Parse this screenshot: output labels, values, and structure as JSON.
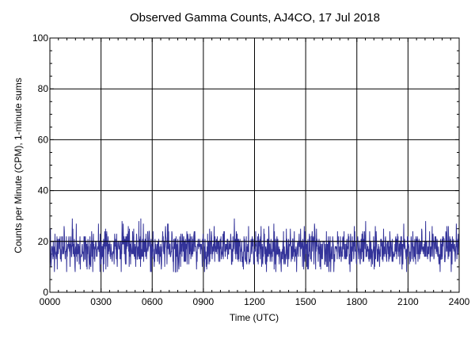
{
  "colors": {
    "background": "#ffffff",
    "grid": "#000000",
    "series": "#333399",
    "axes": "#000000"
  },
  "chart_data": {
    "type": "line",
    "title": "Observed Gamma Counts, AJ4CO, 17 Jul 2018",
    "xlabel": "Time (UTC)",
    "ylabel": "Counts per Minute (CPM), 1-minute sums",
    "xlim": [
      0,
      1440
    ],
    "ylim": [
      0,
      100
    ],
    "x_unit": "minutes after 0000 UTC",
    "x_tick_values": [
      0,
      180,
      360,
      540,
      720,
      900,
      1080,
      1260,
      1440
    ],
    "x_tick_labels": [
      "0000",
      "0300",
      "0600",
      "0900",
      "1200",
      "1500",
      "1800",
      "2100",
      "2400"
    ],
    "y_tick_values": [
      0,
      20,
      40,
      60,
      80,
      100
    ],
    "y_tick_labels": [
      "0",
      "20",
      "40",
      "60",
      "80",
      "100"
    ],
    "grid": true,
    "reference_line_y": 20,
    "series": [
      {
        "sampling_interval_minutes": 1,
        "approx_mean": 17,
        "approx_min": 8,
        "approx_max": 29,
        "color": "#333399"
      }
    ]
  }
}
